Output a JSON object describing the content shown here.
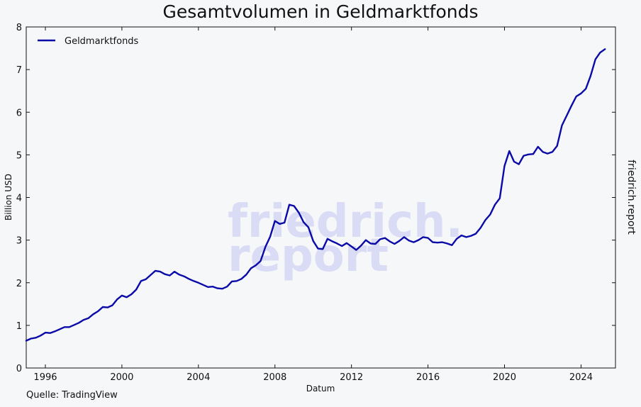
{
  "chart_data": {
    "type": "line",
    "title": "Gesamtvolumen in Geldmarktfonds",
    "xlabel": "Datum",
    "ylabel": "Billion USD",
    "xlim": [
      1995.0,
      2025.8
    ],
    "ylim": [
      0,
      8
    ],
    "x_ticks": [
      1996,
      2000,
      2004,
      2008,
      2012,
      2016,
      2020,
      2024
    ],
    "y_ticks": [
      0,
      1,
      2,
      3,
      4,
      5,
      6,
      7,
      8
    ],
    "grid": false,
    "legend": "top-left",
    "series": [
      {
        "name": "Geldmarktfonds",
        "color": "#0a0aa8",
        "x": [
          1995.0,
          1995.25,
          1995.5,
          1995.75,
          1996.0,
          1996.25,
          1996.5,
          1996.75,
          1997.0,
          1997.25,
          1997.5,
          1997.75,
          1998.0,
          1998.25,
          1998.5,
          1998.75,
          1999.0,
          1999.25,
          1999.5,
          1999.75,
          2000.0,
          2000.25,
          2000.5,
          2000.75,
          2001.0,
          2001.25,
          2001.5,
          2001.75,
          2002.0,
          2002.25,
          2002.5,
          2002.75,
          2003.0,
          2003.25,
          2003.5,
          2003.75,
          2004.0,
          2004.25,
          2004.5,
          2004.75,
          2005.0,
          2005.25,
          2005.5,
          2005.75,
          2006.0,
          2006.25,
          2006.5,
          2006.75,
          2007.0,
          2007.25,
          2007.5,
          2007.75,
          2008.0,
          2008.25,
          2008.5,
          2008.75,
          2009.0,
          2009.25,
          2009.5,
          2009.75,
          2010.0,
          2010.25,
          2010.5,
          2010.75,
          2011.0,
          2011.25,
          2011.5,
          2011.75,
          2012.0,
          2012.25,
          2012.5,
          2012.75,
          2013.0,
          2013.25,
          2013.5,
          2013.75,
          2014.0,
          2014.25,
          2014.5,
          2014.75,
          2015.0,
          2015.25,
          2015.5,
          2015.75,
          2016.0,
          2016.25,
          2016.5,
          2016.75,
          2017.0,
          2017.25,
          2017.5,
          2017.75,
          2018.0,
          2018.25,
          2018.5,
          2018.75,
          2019.0,
          2019.25,
          2019.5,
          2019.75,
          2020.0,
          2020.25,
          2020.5,
          2020.75,
          2021.0,
          2021.25,
          2021.5,
          2021.75,
          2022.0,
          2022.25,
          2022.5,
          2022.75,
          2023.0,
          2023.25,
          2023.5,
          2023.75,
          2024.0,
          2024.25,
          2024.5,
          2024.75,
          2025.0,
          2025.25
        ],
        "values": [
          0.64,
          0.69,
          0.71,
          0.76,
          0.83,
          0.82,
          0.86,
          0.91,
          0.96,
          0.96,
          1.01,
          1.06,
          1.13,
          1.17,
          1.26,
          1.33,
          1.43,
          1.42,
          1.47,
          1.61,
          1.7,
          1.66,
          1.73,
          1.84,
          2.04,
          2.08,
          2.18,
          2.28,
          2.26,
          2.2,
          2.17,
          2.26,
          2.19,
          2.15,
          2.09,
          2.04,
          2.0,
          1.95,
          1.9,
          1.91,
          1.87,
          1.86,
          1.91,
          2.03,
          2.04,
          2.09,
          2.19,
          2.34,
          2.41,
          2.51,
          2.84,
          3.08,
          3.45,
          3.38,
          3.41,
          3.83,
          3.8,
          3.64,
          3.42,
          3.3,
          2.98,
          2.8,
          2.79,
          3.03,
          2.97,
          2.92,
          2.86,
          2.93,
          2.85,
          2.77,
          2.87,
          3.0,
          2.92,
          2.91,
          3.02,
          3.05,
          2.97,
          2.91,
          2.98,
          3.07,
          2.99,
          2.95,
          3.0,
          3.07,
          3.05,
          2.95,
          2.94,
          2.95,
          2.92,
          2.88,
          3.03,
          3.11,
          3.07,
          3.1,
          3.15,
          3.29,
          3.47,
          3.6,
          3.83,
          3.98,
          4.74,
          5.09,
          4.84,
          4.78,
          4.98,
          5.01,
          5.02,
          5.19,
          5.07,
          5.03,
          5.07,
          5.21,
          5.69,
          5.92,
          6.15,
          6.37,
          6.44,
          6.55,
          6.85,
          7.24,
          7.4,
          7.48
        ]
      }
    ],
    "watermark": "friedrich.report",
    "source": "Quelle: TradingView",
    "side_label": "friedrich.report"
  }
}
